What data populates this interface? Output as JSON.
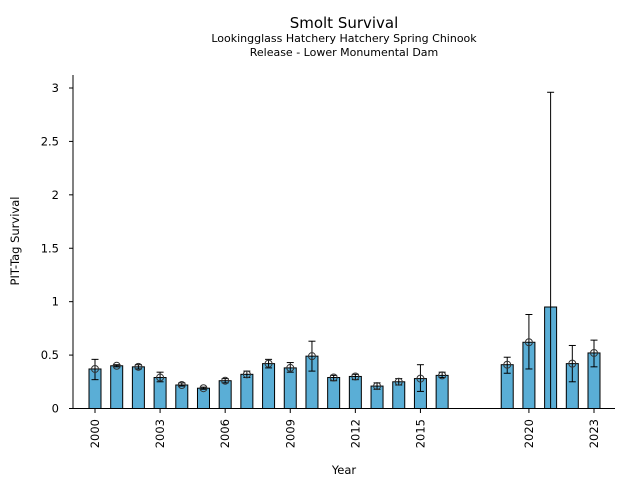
{
  "chart_data": {
    "type": "bar",
    "title": "Smolt Survival",
    "subtitle_lines": [
      "Lookingglass Hatchery Hatchery Spring Chinook",
      "Release - Lower Monumental Dam"
    ],
    "xlabel": "Year",
    "ylabel": "PIT-Tag Survival",
    "ylim": [
      0,
      3.1
    ],
    "xlim": [
      1999.3,
      2023.9
    ],
    "yticks": [
      0,
      0.5,
      1,
      1.5,
      2,
      2.5,
      3
    ],
    "ytick_labels": [
      "0",
      "0.5",
      "1",
      "1.5",
      "2",
      "2.5",
      "3"
    ],
    "xticks": [
      2000,
      2003,
      2006,
      2009,
      2012,
      2015,
      2020,
      2023
    ],
    "xtick_labels": [
      "2000",
      "2003",
      "2006",
      "2009",
      "2012",
      "2015",
      "2020",
      "2023"
    ],
    "bar_color": "#5aaed6",
    "grid": false,
    "legend": "none",
    "series": [
      {
        "name": "Survival",
        "points": [
          {
            "year": 2000,
            "value": 0.37,
            "lower": 0.27,
            "upper": 0.46,
            "marker": true
          },
          {
            "year": 2001,
            "value": 0.4,
            "lower": 0.39,
            "upper": 0.41,
            "marker": true
          },
          {
            "year": 2002,
            "value": 0.39,
            "lower": 0.37,
            "upper": 0.41,
            "marker": true
          },
          {
            "year": 2003,
            "value": 0.29,
            "lower": 0.25,
            "upper": 0.34,
            "marker": true
          },
          {
            "year": 2004,
            "value": 0.22,
            "lower": 0.21,
            "upper": 0.24,
            "marker": true
          },
          {
            "year": 2005,
            "value": 0.19,
            "lower": 0.18,
            "upper": 0.2,
            "marker": true
          },
          {
            "year": 2006,
            "value": 0.26,
            "lower": 0.24,
            "upper": 0.28,
            "marker": true
          },
          {
            "year": 2007,
            "value": 0.32,
            "lower": 0.29,
            "upper": 0.35,
            "marker": true
          },
          {
            "year": 2008,
            "value": 0.42,
            "lower": 0.38,
            "upper": 0.46,
            "marker": true
          },
          {
            "year": 2009,
            "value": 0.38,
            "lower": 0.34,
            "upper": 0.43,
            "marker": true
          },
          {
            "year": 2010,
            "value": 0.49,
            "lower": 0.35,
            "upper": 0.63,
            "marker": true
          },
          {
            "year": 2011,
            "value": 0.29,
            "lower": 0.26,
            "upper": 0.31,
            "marker": true
          },
          {
            "year": 2012,
            "value": 0.3,
            "lower": 0.27,
            "upper": 0.32,
            "marker": true
          },
          {
            "year": 2013,
            "value": 0.21,
            "lower": 0.18,
            "upper": 0.24,
            "marker": true
          },
          {
            "year": 2014,
            "value": 0.25,
            "lower": 0.22,
            "upper": 0.28,
            "marker": true
          },
          {
            "year": 2015,
            "value": 0.28,
            "lower": 0.16,
            "upper": 0.41,
            "marker": true
          },
          {
            "year": 2016,
            "value": 0.31,
            "lower": 0.29,
            "upper": 0.34,
            "marker": true
          },
          {
            "year": 2019,
            "value": 0.41,
            "lower": 0.33,
            "upper": 0.48,
            "marker": true
          },
          {
            "year": 2020,
            "value": 0.62,
            "lower": 0.37,
            "upper": 0.88,
            "marker": true
          },
          {
            "year": 2021,
            "value": 0.95,
            "lower": 0.0,
            "upper": 2.96,
            "marker": false
          },
          {
            "year": 2022,
            "value": 0.42,
            "lower": 0.25,
            "upper": 0.59,
            "marker": true
          },
          {
            "year": 2023,
            "value": 0.52,
            "lower": 0.39,
            "upper": 0.64,
            "marker": true
          }
        ]
      }
    ]
  }
}
